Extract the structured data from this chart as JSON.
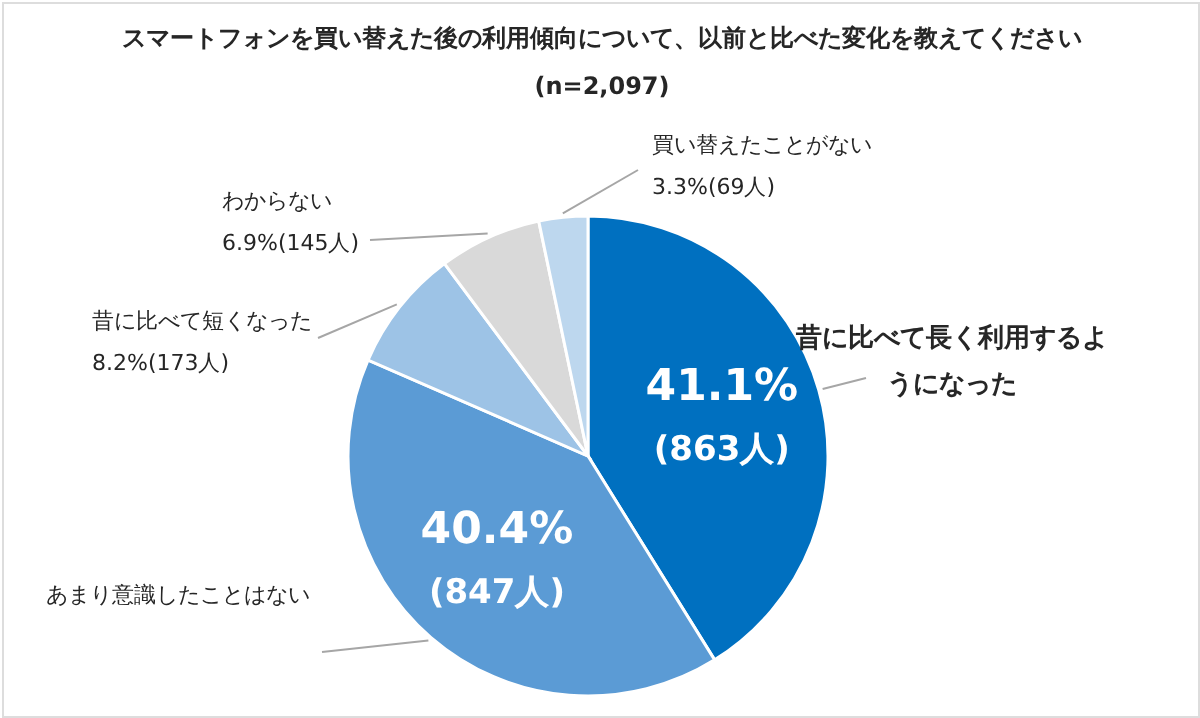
{
  "chart_data": {
    "type": "pie",
    "title": "スマートフォンを買い替えた後の利用傾向について、以前と比べた変化を教えてください",
    "subtitle": "(n=2,097)",
    "categories": [
      "昔に比べて長く利用するようになった",
      "あまり意識したことはない",
      "昔に比べて短くなった",
      "わからない",
      "買い替えたことがない"
    ],
    "values": [
      863,
      847,
      173,
      145,
      69
    ],
    "colors": [
      "#0070c0",
      "#5b9bd5",
      "#9dc3e6",
      "#d9d9d9",
      "#bdd7ee"
    ],
    "value_labels": [
      "41.1%(863人)",
      "40.4%(847人)",
      "8.2%(173人)",
      "6.9%(145人)",
      "3.3%(69人)"
    ]
  }
}
